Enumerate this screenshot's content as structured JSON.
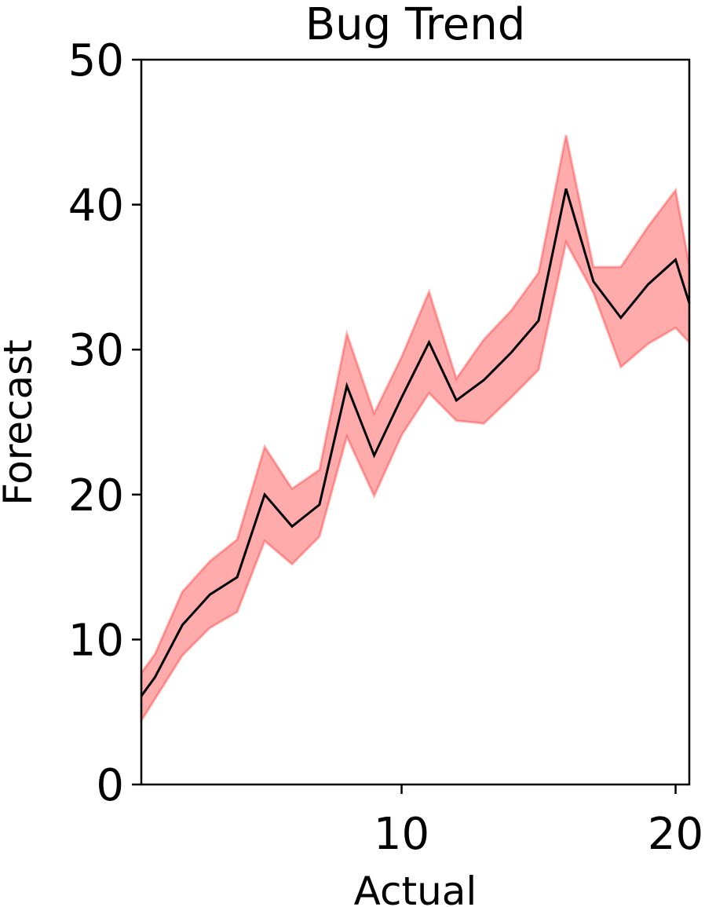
{
  "chart_data": {
    "type": "line",
    "title": "Bug Trend",
    "xlabel": "Actual",
    "ylabel": "Forecast",
    "xlim": [
      0.5,
      20.5
    ],
    "ylim": [
      0,
      50
    ],
    "xticks": [
      10,
      20
    ],
    "yticks": [
      0,
      10,
      20,
      30,
      40,
      50
    ],
    "grid": false,
    "x": [
      0.5,
      1,
      2,
      3,
      4,
      5,
      6,
      7,
      8,
      9,
      10,
      11,
      12,
      13,
      14,
      15,
      16,
      17,
      18,
      19,
      20,
      20.5
    ],
    "series": [
      {
        "values": [
          6.1,
          7.4,
          11.0,
          13.1,
          14.3,
          20.0,
          17.8,
          19.3,
          27.5,
          22.7,
          26.7,
          30.5,
          26.5,
          27.9,
          29.8,
          32.0,
          41.1,
          34.7,
          32.2,
          34.5,
          36.2,
          33.2
        ],
        "lower": [
          4.4,
          5.9,
          8.9,
          10.8,
          11.9,
          16.8,
          15.2,
          17.1,
          24.0,
          19.9,
          24.1,
          27.0,
          25.1,
          24.9,
          26.7,
          28.6,
          37.4,
          33.9,
          28.8,
          30.4,
          31.5,
          30.5
        ],
        "upper": [
          7.7,
          9.0,
          13.3,
          15.4,
          16.9,
          23.3,
          20.4,
          21.7,
          31.1,
          25.6,
          29.5,
          34.0,
          28.0,
          30.7,
          32.7,
          35.3,
          44.8,
          35.7,
          35.7,
          38.5,
          41.0,
          35.8
        ]
      }
    ],
    "colors": {
      "line": "#000000",
      "band_fill": "#ff0000",
      "band_fill_opacity": 0.33,
      "band_edge": "#ff0000",
      "band_edge_opacity": 0.3
    }
  }
}
